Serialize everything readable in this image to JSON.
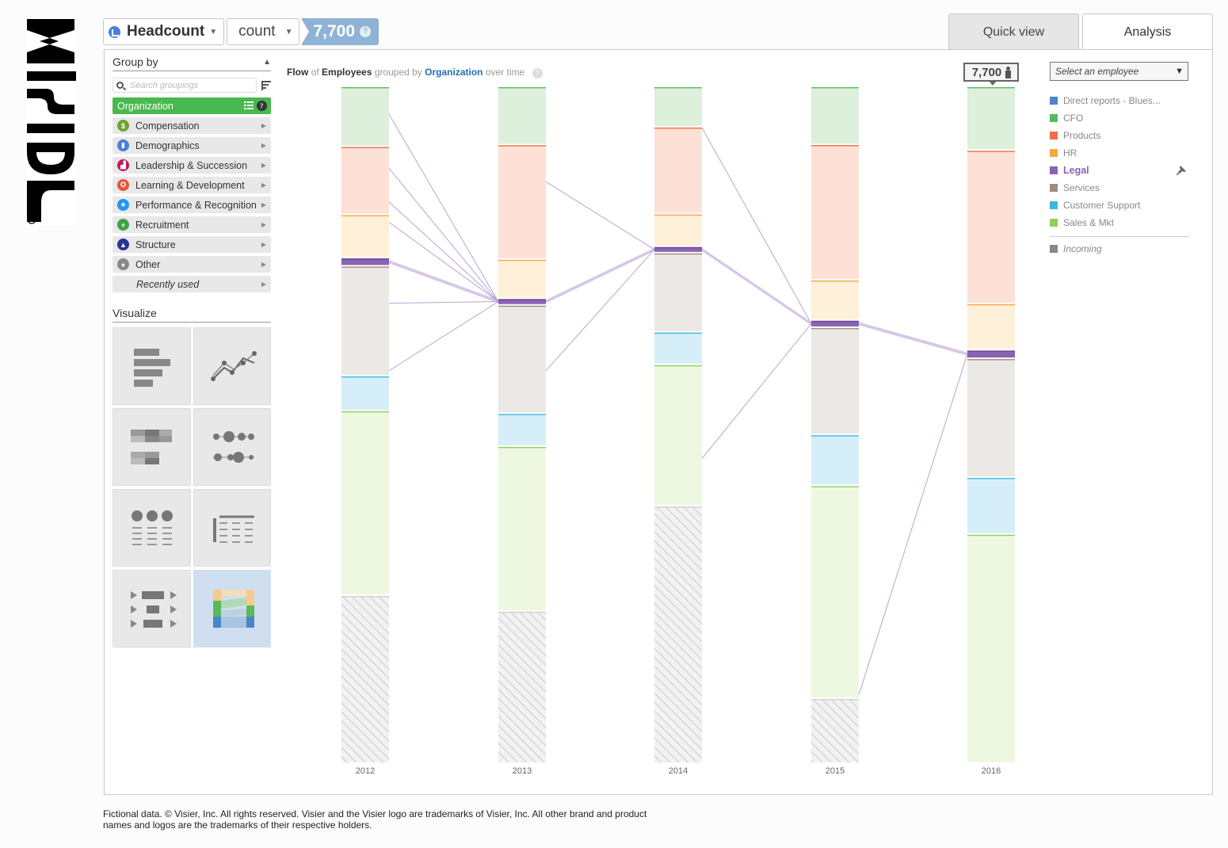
{
  "brand": {
    "name": "Visier"
  },
  "metric": {
    "name": "Headcount",
    "mode": "count",
    "value": "7,700",
    "help": "?"
  },
  "tabs": [
    {
      "label": "Quick view"
    },
    {
      "label": "Analysis"
    }
  ],
  "group_by": {
    "title": "Group by",
    "search_placeholder": "Search groupings",
    "items": [
      {
        "label": "Organization",
        "color": "#49b84e"
      },
      {
        "label": "Compensation",
        "color": "#6ca52f",
        "icon": "dollar-icon"
      },
      {
        "label": "Demographics",
        "color": "#4a7fe0",
        "icon": "bar-chart-icon"
      },
      {
        "label": "Leadership & Succession",
        "color": "#c2185b",
        "icon": "stairs-icon"
      },
      {
        "label": "Learning & Development",
        "color": "#e8543a",
        "icon": "ribbon-icon"
      },
      {
        "label": "Performance & Recognition",
        "color": "#2196f3",
        "icon": "star-icon"
      },
      {
        "label": "Recruitment",
        "color": "#43a047",
        "icon": "recruit-icon"
      },
      {
        "label": "Structure",
        "color": "#283593",
        "icon": "structure-icon"
      },
      {
        "label": "Other",
        "color": "#888888",
        "icon": "circle-icon"
      },
      {
        "label": "Recently used"
      }
    ]
  },
  "visualize": {
    "title": "Visualize"
  },
  "chart_title": {
    "w1": "Flow",
    "w2": "of",
    "w3": "Employees",
    "w4": "grouped by",
    "w5": "Organization",
    "w6": "over time"
  },
  "tooltip": {
    "value": "7,700"
  },
  "employee_select": {
    "placeholder": "Select an employee"
  },
  "legend": [
    {
      "label": "Direct reports - Blues...",
      "color": "#4a86c5"
    },
    {
      "label": "CFO",
      "color": "#5cb85c"
    },
    {
      "label": "Products",
      "color": "#f07045"
    },
    {
      "label": "HR",
      "color": "#f5a742"
    },
    {
      "label": "Legal",
      "color": "#8b63b3",
      "active": true
    },
    {
      "label": "Services",
      "color": "#a08b80"
    },
    {
      "label": "Customer Support",
      "color": "#3ab9dc"
    },
    {
      "label": "Sales & Mkt",
      "color": "#8fd05a"
    }
  ],
  "legend_incoming": {
    "label": "Incoming",
    "color": "#888888"
  },
  "chart_data": {
    "type": "flow",
    "x": [
      "2012",
      "2013",
      "2014",
      "2015",
      "2016"
    ],
    "series": [
      {
        "name": "CFO",
        "values": [
          350,
          450,
          500,
          800,
          900
        ]
      },
      {
        "name": "Products",
        "values": [
          400,
          900,
          1100,
          1900,
          2200
        ]
      },
      {
        "name": "HR",
        "values": [
          250,
          300,
          400,
          550,
          650
        ]
      },
      {
        "name": "Legal",
        "values": [
          40,
          40,
          60,
          80,
          100
        ]
      },
      {
        "name": "Services",
        "values": [
          650,
          850,
          1000,
          1500,
          1700
        ]
      },
      {
        "name": "Customer Support",
        "values": [
          200,
          250,
          400,
          700,
          800
        ]
      },
      {
        "name": "Sales & Mkt",
        "values": [
          1100,
          1300,
          1800,
          3000,
          3300
        ]
      },
      {
        "name": "Incoming",
        "values": [
          1000,
          1200,
          3300,
          900,
          0
        ]
      }
    ],
    "legend": "right",
    "highlight": "Legal"
  },
  "footer": {
    "text": "Fictional data. © Visier, Inc. All rights reserved. Visier and the Visier logo are trademarks of Visier, Inc. All other brand and product names and logos are the trademarks of their respective holders."
  }
}
